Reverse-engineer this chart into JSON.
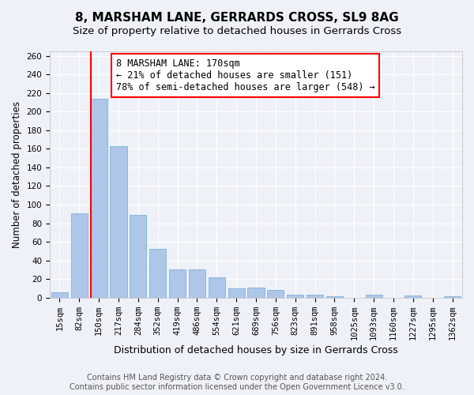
{
  "title": "8, MARSHAM LANE, GERRARDS CROSS, SL9 8AG",
  "subtitle": "Size of property relative to detached houses in Gerrards Cross",
  "xlabel": "Distribution of detached houses by size in Gerrards Cross",
  "ylabel": "Number of detached properties",
  "bar_labels": [
    "15sqm",
    "82sqm",
    "150sqm",
    "217sqm",
    "284sqm",
    "352sqm",
    "419sqm",
    "486sqm",
    "554sqm",
    "621sqm",
    "689sqm",
    "756sqm",
    "823sqm",
    "891sqm",
    "958sqm",
    "1025sqm",
    "1093sqm",
    "1160sqm",
    "1227sqm",
    "1295sqm",
    "1362sqm"
  ],
  "bar_values": [
    6,
    91,
    214,
    163,
    89,
    52,
    30,
    30,
    22,
    10,
    11,
    8,
    3,
    3,
    1,
    0,
    3,
    0,
    2,
    0,
    1
  ],
  "bar_color": "#aec6e8",
  "bar_edge_color": "#6baed6",
  "ylim": [
    0,
    265
  ],
  "yticks": [
    0,
    20,
    40,
    60,
    80,
    100,
    120,
    140,
    160,
    180,
    200,
    220,
    240,
    260
  ],
  "red_line_index": 2,
  "annotation_title": "8 MARSHAM LANE: 170sqm",
  "annotation_line1": "← 21% of detached houses are smaller (151)",
  "annotation_line2": "78% of semi-detached houses are larger (548) →",
  "footer_line1": "Contains HM Land Registry data © Crown copyright and database right 2024.",
  "footer_line2": "Contains public sector information licensed under the Open Government Licence v3.0.",
  "background_color": "#eef2f8",
  "grid_color": "#ffffff",
  "title_fontsize": 11,
  "subtitle_fontsize": 9.5,
  "xlabel_fontsize": 9,
  "ylabel_fontsize": 8.5,
  "tick_fontsize": 7.5,
  "annotation_fontsize": 8.5,
  "footer_fontsize": 7
}
